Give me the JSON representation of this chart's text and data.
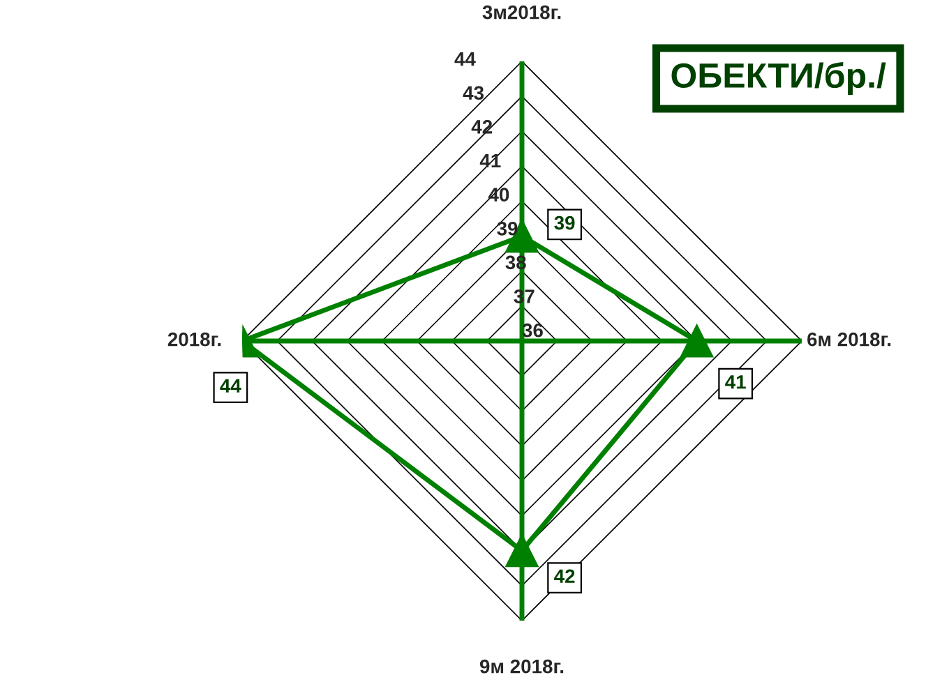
{
  "chart_data": {
    "type": "radar",
    "title": "ОБЕКТИ/бр./",
    "categories": [
      "3м2018г.",
      "6м 2018г.",
      "9м 2018г.",
      "2018г."
    ],
    "series": [
      {
        "color": "#008000",
        "values": [
          39,
          41,
          42,
          44
        ]
      }
    ],
    "ylim": [
      36,
      44
    ],
    "yticks": [
      36,
      37,
      38,
      39,
      40,
      41,
      42,
      43,
      44
    ],
    "grid": true,
    "marker": "triangle",
    "data_labels": true
  }
}
